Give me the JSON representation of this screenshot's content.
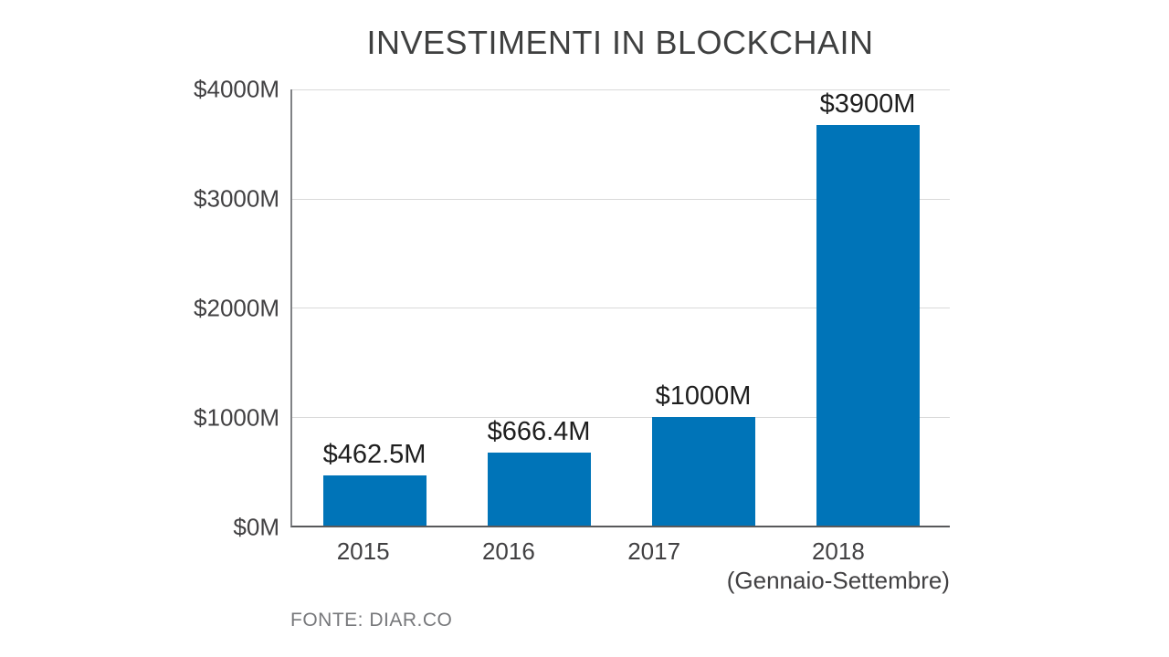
{
  "title": "INVESTIMENTI IN BLOCKCHAIN",
  "source": "FONTE: DIAR.CO",
  "colors": {
    "bar": "#0074b8",
    "grid": "#d9d9d9",
    "axis": "#58595b",
    "value_label": "#1e1e1e",
    "tick_label": "#414042",
    "source_text": "#77787b"
  },
  "chart_data": {
    "type": "bar",
    "title": "INVESTIMENTI IN BLOCKCHAIN",
    "categories": [
      "2015",
      "2016",
      "2017",
      "2018"
    ],
    "category_sublabels": [
      "",
      "",
      "",
      "(Gennaio-Settembre)"
    ],
    "values": [
      462.5,
      666.4,
      1000,
      3900
    ],
    "value_labels": [
      "$462.5M",
      "$666.4M",
      "$1000M",
      "$3900M"
    ],
    "xlabel": "",
    "ylabel": "",
    "ylim": [
      0,
      4000
    ],
    "yticks": [
      4000,
      3000,
      2000,
      1000,
      0
    ],
    "ytick_labels": [
      "$4000M",
      "$3000M",
      "$2000M",
      "$1000M",
      "$0M"
    ],
    "grid": "horizontal",
    "legend": "none",
    "source": "FONTE: DIAR.CO"
  }
}
